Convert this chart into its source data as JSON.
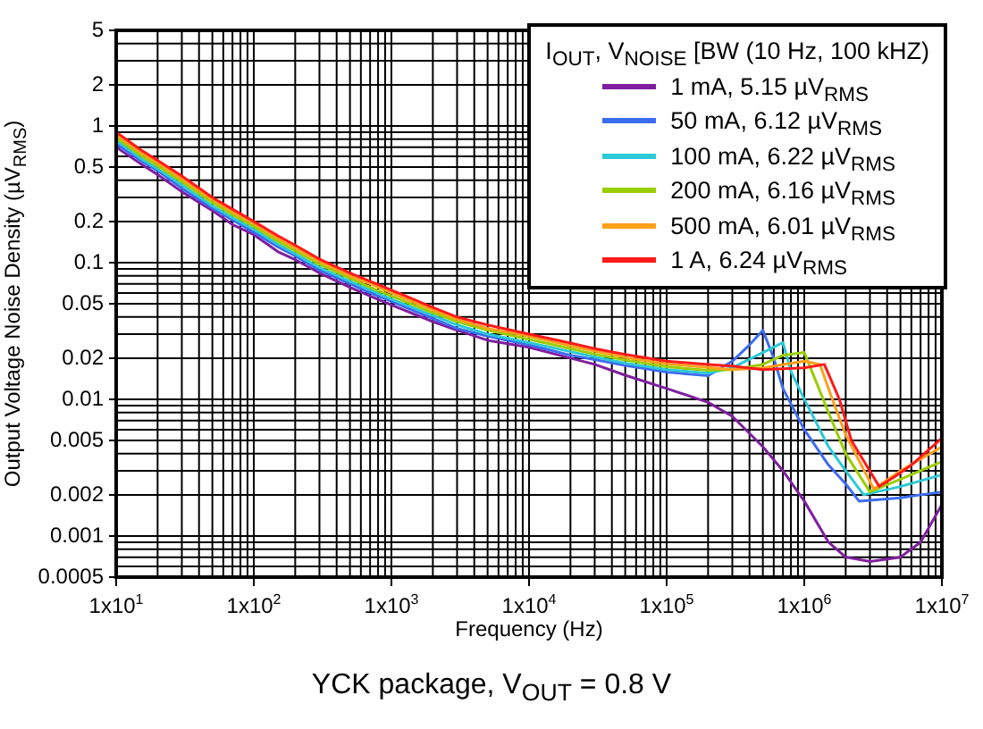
{
  "chart_data": {
    "type": "line",
    "ylabel": "Output Voltage Noise Density (µV$_{RMS}$)",
    "xlabel": "Frequency (Hz)",
    "legend_title": "I$_{OUT}$, V$_{NOISE}$ [BW (10 Hz, 100 kHZ)",
    "annotations": [
      "YCK package, V$_{OUT}$ = 0.8 V"
    ],
    "log": "xy",
    "grid": true,
    "legend": "top right",
    "marker": "none",
    "line_style": "solid",
    "xlim": [
      10,
      10000000
    ],
    "ylim": [
      0.0005,
      5
    ],
    "xticks": [
      {
        "value": 10,
        "label": "1x10$^{1}$"
      },
      {
        "value": 100,
        "label": "1x10$^{2}$"
      },
      {
        "value": 1000,
        "label": "1x10$^{3}$"
      },
      {
        "value": 10000,
        "label": "1x10$^{4}$"
      },
      {
        "value": 100000,
        "label": "1x10$^{5}$"
      },
      {
        "value": 1000000,
        "label": "1x10$^{6}$"
      },
      {
        "value": 10000000,
        "label": "1x10$^{7}$"
      }
    ],
    "yticks": [
      0.0005,
      0.001,
      0.002,
      0.005,
      0.01,
      0.02,
      0.05,
      0.1,
      0.2,
      0.5,
      1,
      2,
      5
    ],
    "series": [
      {
        "name": "1 mA, 5.15 µV$_{RMS}$",
        "color": "#7f1f9f",
        "x": [
          10,
          15,
          20,
          30,
          50,
          70,
          100,
          150,
          200,
          300,
          500,
          700,
          1000,
          2000,
          3000,
          5000,
          10000,
          20000,
          30000,
          50000,
          100000,
          200000,
          300000,
          500000,
          700000,
          1000000,
          1500000,
          2000000,
          3000000,
          5000000,
          7000000,
          10000000
        ],
        "values": [
          0.7,
          0.53,
          0.44,
          0.33,
          0.24,
          0.19,
          0.16,
          0.12,
          0.105,
          0.084,
          0.066,
          0.057,
          0.049,
          0.037,
          0.032,
          0.027,
          0.024,
          0.02,
          0.018,
          0.015,
          0.012,
          0.0095,
          0.0075,
          0.0045,
          0.003,
          0.0018,
          0.0009,
          0.0007,
          0.00065,
          0.0007,
          0.0009,
          0.0017
        ]
      },
      {
        "name": "50 mA, 6.12 µV$_{RMS}$",
        "color": "#3d6cf0",
        "x": [
          10,
          15,
          20,
          30,
          50,
          70,
          100,
          150,
          200,
          300,
          500,
          700,
          1000,
          2000,
          3000,
          5000,
          10000,
          20000,
          30000,
          50000,
          100000,
          200000,
          300000,
          400000,
          500000,
          600000,
          700000,
          1000000,
          1500000,
          2000000,
          2500000,
          5000000,
          7000000,
          10000000
        ],
        "values": [
          0.74,
          0.56,
          0.47,
          0.35,
          0.25,
          0.205,
          0.167,
          0.13,
          0.112,
          0.088,
          0.07,
          0.06,
          0.052,
          0.039,
          0.033,
          0.029,
          0.025,
          0.021,
          0.0195,
          0.0177,
          0.0158,
          0.0149,
          0.019,
          0.025,
          0.032,
          0.02,
          0.012,
          0.006,
          0.0033,
          0.0024,
          0.0018,
          0.0019,
          0.002,
          0.0021
        ]
      },
      {
        "name": "100 mA, 6.22 µV$_{RMS}$",
        "color": "#2cc9d6",
        "x": [
          10,
          15,
          20,
          30,
          50,
          70,
          100,
          150,
          200,
          300,
          500,
          700,
          1000,
          2000,
          3000,
          5000,
          10000,
          20000,
          30000,
          50000,
          100000,
          200000,
          300000,
          500000,
          700000,
          800000,
          1000000,
          1500000,
          2000000,
          2700000,
          5000000,
          10000000
        ],
        "values": [
          0.78,
          0.58,
          0.485,
          0.37,
          0.26,
          0.213,
          0.175,
          0.136,
          0.116,
          0.092,
          0.073,
          0.063,
          0.054,
          0.041,
          0.035,
          0.03,
          0.026,
          0.0223,
          0.0204,
          0.0184,
          0.0165,
          0.0155,
          0.017,
          0.022,
          0.026,
          0.016,
          0.01,
          0.0045,
          0.003,
          0.002,
          0.0023,
          0.0028
        ]
      },
      {
        "name": "200 mA, 6.16 µV$_{RMS}$",
        "color": "#9acd00",
        "x": [
          10,
          15,
          20,
          30,
          50,
          70,
          100,
          150,
          200,
          300,
          500,
          700,
          1000,
          2000,
          3000,
          5000,
          10000,
          20000,
          30000,
          50000,
          100000,
          200000,
          300000,
          500000,
          700000,
          1000000,
          1200000,
          1500000,
          2000000,
          3000000,
          5000000,
          10000000
        ],
        "values": [
          0.82,
          0.61,
          0.51,
          0.39,
          0.275,
          0.224,
          0.184,
          0.143,
          0.122,
          0.097,
          0.077,
          0.066,
          0.057,
          0.043,
          0.037,
          0.032,
          0.0275,
          0.0235,
          0.0214,
          0.0194,
          0.0173,
          0.0163,
          0.0165,
          0.018,
          0.021,
          0.022,
          0.014,
          0.008,
          0.004,
          0.0021,
          0.0026,
          0.0035
        ]
      },
      {
        "name": "500 mA, 6.01 µV$_{RMS}$",
        "color": "#ff9f1a",
        "x": [
          10,
          15,
          20,
          30,
          50,
          70,
          100,
          150,
          200,
          300,
          500,
          700,
          1000,
          2000,
          3000,
          5000,
          10000,
          20000,
          30000,
          50000,
          100000,
          200000,
          300000,
          500000,
          1000000,
          1300000,
          1600000,
          2000000,
          3200000,
          5000000,
          10000000
        ],
        "values": [
          0.86,
          0.64,
          0.535,
          0.41,
          0.29,
          0.235,
          0.193,
          0.15,
          0.128,
          0.102,
          0.08,
          0.07,
          0.06,
          0.045,
          0.0385,
          0.033,
          0.029,
          0.0246,
          0.0225,
          0.0203,
          0.0182,
          0.0171,
          0.0165,
          0.017,
          0.019,
          0.018,
          0.01,
          0.0055,
          0.0022,
          0.003,
          0.0045
        ]
      },
      {
        "name": "1 A, 6.24 µV$_{RMS}$",
        "color": "#ff1a1a",
        "x": [
          10,
          15,
          20,
          30,
          50,
          70,
          100,
          150,
          200,
          300,
          500,
          700,
          1000,
          2000,
          3000,
          5000,
          10000,
          20000,
          30000,
          50000,
          100000,
          200000,
          300000,
          500000,
          1000000,
          1400000,
          1800000,
          2200000,
          3500000,
          4500000,
          6000000,
          10000000
        ],
        "values": [
          0.9,
          0.67,
          0.56,
          0.43,
          0.3,
          0.246,
          0.2,
          0.157,
          0.134,
          0.106,
          0.084,
          0.073,
          0.063,
          0.047,
          0.04,
          0.035,
          0.03,
          0.0258,
          0.0235,
          0.0213,
          0.019,
          0.018,
          0.0175,
          0.0165,
          0.017,
          0.018,
          0.01,
          0.005,
          0.0023,
          0.0027,
          0.0033,
          0.0052
        ]
      }
    ]
  }
}
